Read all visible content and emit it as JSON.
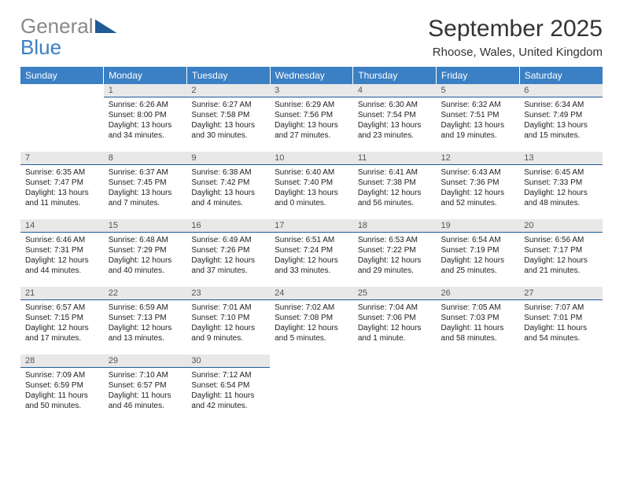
{
  "logo": {
    "text1": "General",
    "text2": "Blue"
  },
  "title": "September 2025",
  "location": "Rhoose, Wales, United Kingdom",
  "colors": {
    "header_bg": "#3b7fc4",
    "header_fg": "#ffffff",
    "daynum_bg": "#e8e8e8",
    "daynum_border": "#1e5a96",
    "logo_gray": "#888888",
    "logo_blue": "#3b7fc4"
  },
  "weekdays": [
    "Sunday",
    "Monday",
    "Tuesday",
    "Wednesday",
    "Thursday",
    "Friday",
    "Saturday"
  ],
  "start_offset": 1,
  "days": [
    {
      "n": 1,
      "sunrise": "6:26 AM",
      "sunset": "8:00 PM",
      "daylight": "13 hours and 34 minutes."
    },
    {
      "n": 2,
      "sunrise": "6:27 AM",
      "sunset": "7:58 PM",
      "daylight": "13 hours and 30 minutes."
    },
    {
      "n": 3,
      "sunrise": "6:29 AM",
      "sunset": "7:56 PM",
      "daylight": "13 hours and 27 minutes."
    },
    {
      "n": 4,
      "sunrise": "6:30 AM",
      "sunset": "7:54 PM",
      "daylight": "13 hours and 23 minutes."
    },
    {
      "n": 5,
      "sunrise": "6:32 AM",
      "sunset": "7:51 PM",
      "daylight": "13 hours and 19 minutes."
    },
    {
      "n": 6,
      "sunrise": "6:34 AM",
      "sunset": "7:49 PM",
      "daylight": "13 hours and 15 minutes."
    },
    {
      "n": 7,
      "sunrise": "6:35 AM",
      "sunset": "7:47 PM",
      "daylight": "13 hours and 11 minutes."
    },
    {
      "n": 8,
      "sunrise": "6:37 AM",
      "sunset": "7:45 PM",
      "daylight": "13 hours and 7 minutes."
    },
    {
      "n": 9,
      "sunrise": "6:38 AM",
      "sunset": "7:42 PM",
      "daylight": "13 hours and 4 minutes."
    },
    {
      "n": 10,
      "sunrise": "6:40 AM",
      "sunset": "7:40 PM",
      "daylight": "13 hours and 0 minutes."
    },
    {
      "n": 11,
      "sunrise": "6:41 AM",
      "sunset": "7:38 PM",
      "daylight": "12 hours and 56 minutes."
    },
    {
      "n": 12,
      "sunrise": "6:43 AM",
      "sunset": "7:36 PM",
      "daylight": "12 hours and 52 minutes."
    },
    {
      "n": 13,
      "sunrise": "6:45 AM",
      "sunset": "7:33 PM",
      "daylight": "12 hours and 48 minutes."
    },
    {
      "n": 14,
      "sunrise": "6:46 AM",
      "sunset": "7:31 PM",
      "daylight": "12 hours and 44 minutes."
    },
    {
      "n": 15,
      "sunrise": "6:48 AM",
      "sunset": "7:29 PM",
      "daylight": "12 hours and 40 minutes."
    },
    {
      "n": 16,
      "sunrise": "6:49 AM",
      "sunset": "7:26 PM",
      "daylight": "12 hours and 37 minutes."
    },
    {
      "n": 17,
      "sunrise": "6:51 AM",
      "sunset": "7:24 PM",
      "daylight": "12 hours and 33 minutes."
    },
    {
      "n": 18,
      "sunrise": "6:53 AM",
      "sunset": "7:22 PM",
      "daylight": "12 hours and 29 minutes."
    },
    {
      "n": 19,
      "sunrise": "6:54 AM",
      "sunset": "7:19 PM",
      "daylight": "12 hours and 25 minutes."
    },
    {
      "n": 20,
      "sunrise": "6:56 AM",
      "sunset": "7:17 PM",
      "daylight": "12 hours and 21 minutes."
    },
    {
      "n": 21,
      "sunrise": "6:57 AM",
      "sunset": "7:15 PM",
      "daylight": "12 hours and 17 minutes."
    },
    {
      "n": 22,
      "sunrise": "6:59 AM",
      "sunset": "7:13 PM",
      "daylight": "12 hours and 13 minutes."
    },
    {
      "n": 23,
      "sunrise": "7:01 AM",
      "sunset": "7:10 PM",
      "daylight": "12 hours and 9 minutes."
    },
    {
      "n": 24,
      "sunrise": "7:02 AM",
      "sunset": "7:08 PM",
      "daylight": "12 hours and 5 minutes."
    },
    {
      "n": 25,
      "sunrise": "7:04 AM",
      "sunset": "7:06 PM",
      "daylight": "12 hours and 1 minute."
    },
    {
      "n": 26,
      "sunrise": "7:05 AM",
      "sunset": "7:03 PM",
      "daylight": "11 hours and 58 minutes."
    },
    {
      "n": 27,
      "sunrise": "7:07 AM",
      "sunset": "7:01 PM",
      "daylight": "11 hours and 54 minutes."
    },
    {
      "n": 28,
      "sunrise": "7:09 AM",
      "sunset": "6:59 PM",
      "daylight": "11 hours and 50 minutes."
    },
    {
      "n": 29,
      "sunrise": "7:10 AM",
      "sunset": "6:57 PM",
      "daylight": "11 hours and 46 minutes."
    },
    {
      "n": 30,
      "sunrise": "7:12 AM",
      "sunset": "6:54 PM",
      "daylight": "11 hours and 42 minutes."
    }
  ],
  "labels": {
    "sunrise": "Sunrise:",
    "sunset": "Sunset:",
    "daylight": "Daylight:"
  }
}
